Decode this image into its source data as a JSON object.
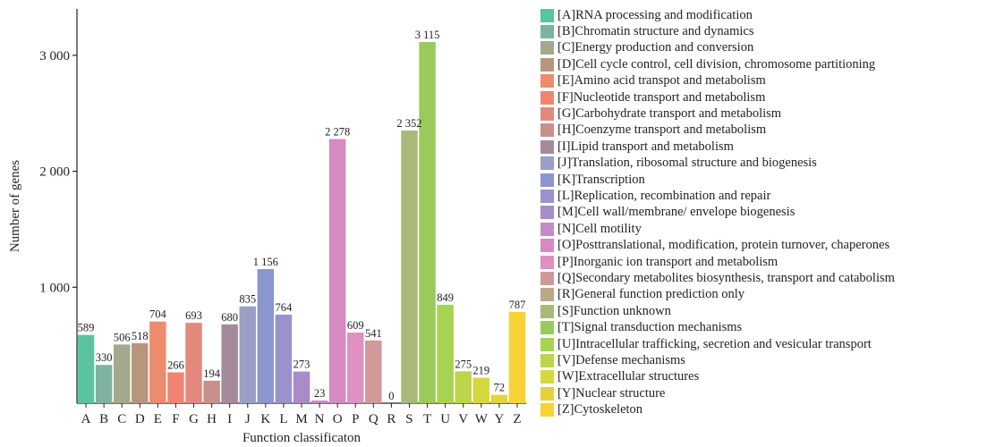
{
  "chart_data": {
    "type": "bar",
    "title": "",
    "xlabel": "Function classificaton",
    "ylabel": "Number of genes",
    "ylim": [
      0,
      3400
    ],
    "yticks": [
      1000,
      2000,
      3000
    ],
    "ytick_labels": [
      "1 000",
      "2 000",
      "3 000"
    ],
    "grid": false,
    "legend_position": "right",
    "categories": [
      "A",
      "B",
      "C",
      "D",
      "E",
      "F",
      "G",
      "H",
      "I",
      "J",
      "K",
      "L",
      "M",
      "N",
      "O",
      "P",
      "Q",
      "R",
      "S",
      "T",
      "U",
      "V",
      "W",
      "Y",
      "Z"
    ],
    "values": [
      589,
      330,
      506,
      518,
      704,
      266,
      693,
      194,
      680,
      835,
      1156,
      764,
      273,
      23,
      2278,
      609,
      541,
      0,
      2352,
      3115,
      849,
      275,
      219,
      72,
      787
    ],
    "value_labels": [
      "589",
      "330",
      "506",
      "518",
      "704",
      "266",
      "693",
      "194",
      "680",
      "835",
      "1 156",
      "764",
      "273",
      "23",
      "2 278",
      "609",
      "541",
      "0",
      "2 352",
      "3 115",
      "849",
      "275",
      "219",
      "72",
      "787"
    ],
    "colors": [
      "#5cc3a0",
      "#7eb3a0",
      "#a3a98d",
      "#b8967c",
      "#ec8c6d",
      "#f08470",
      "#e3887c",
      "#c8908a",
      "#a58a9b",
      "#9a9fc3",
      "#8a96cc",
      "#9b91cc",
      "#a88bc9",
      "#c58ac8",
      "#d68ac0",
      "#df90bf",
      "#d19898",
      "#baa888",
      "#a9ba78",
      "#9bca5c",
      "#a7d252",
      "#bcd54a",
      "#d3d83f",
      "#e6d23a",
      "#f7d234"
    ],
    "legend": [
      {
        "letter": "A",
        "label": "[A]RNA processing and modification",
        "color": "#5cc3a0"
      },
      {
        "letter": "B",
        "label": "[B]Chromatin structure and dynamics",
        "color": "#7eb3a0"
      },
      {
        "letter": "C",
        "label": "[C]Energy production and conversion",
        "color": "#a3a98d"
      },
      {
        "letter": "D",
        "label": "[D]Cell cycle control, cell division, chromosome partitioning",
        "color": "#b8967c"
      },
      {
        "letter": "E",
        "label": "[E]Amino acid transpot and metabolism",
        "color": "#ec8c6d"
      },
      {
        "letter": "F",
        "label": "[F]Nucleotide transport and metabolism",
        "color": "#f08470"
      },
      {
        "letter": "G",
        "label": "[G]Carbohydrate transport and metabolism",
        "color": "#e3887c"
      },
      {
        "letter": "H",
        "label": "[H]Coenzyme transport and metabolism",
        "color": "#c8908a"
      },
      {
        "letter": "I",
        "label": "[I]Lipid transport and metabolism",
        "color": "#a58a9b"
      },
      {
        "letter": "J",
        "label": "[J]Translation, ribosomal structure and biogenesis",
        "color": "#9a9fc3"
      },
      {
        "letter": "K",
        "label": "[K]Transcription",
        "color": "#8a96cc"
      },
      {
        "letter": "L",
        "label": "[L]Replication, recombination and repair",
        "color": "#9b91cc"
      },
      {
        "letter": "M",
        "label": "[M]Cell wall/membrane/ envelope biogenesis",
        "color": "#a88bc9"
      },
      {
        "letter": "N",
        "label": "[N]Cell motility",
        "color": "#c58ac8"
      },
      {
        "letter": "O",
        "label": "[O]Posttranslational, modification, protein turnover, chaperones",
        "color": "#d68ac0"
      },
      {
        "letter": "P",
        "label": "[P]Inorganic ion transport and metabolism",
        "color": "#df90bf"
      },
      {
        "letter": "Q",
        "label": "[Q]Secondary metabolites biosynthesis, transport and catabolism",
        "color": "#d19898"
      },
      {
        "letter": "R",
        "label": "[R]General function prediction only",
        "color": "#baa888"
      },
      {
        "letter": "S",
        "label": "[S]Function unknown",
        "color": "#a9ba78"
      },
      {
        "letter": "T",
        "label": "[T]Signal transduction mechanisms",
        "color": "#9bca5c"
      },
      {
        "letter": "U",
        "label": "[U]Intracellular trafficking, secretion and vesicular transport",
        "color": "#a7d252"
      },
      {
        "letter": "V",
        "label": "[V]Defense mechanisms",
        "color": "#bcd54a"
      },
      {
        "letter": "W",
        "label": "[W]Extracellular structures",
        "color": "#d3d83f"
      },
      {
        "letter": "Y",
        "label": "[Y]Nuclear structure",
        "color": "#e6d23a"
      },
      {
        "letter": "Z",
        "label": "[Z]Cytoskeleton",
        "color": "#f7d234"
      }
    ]
  }
}
